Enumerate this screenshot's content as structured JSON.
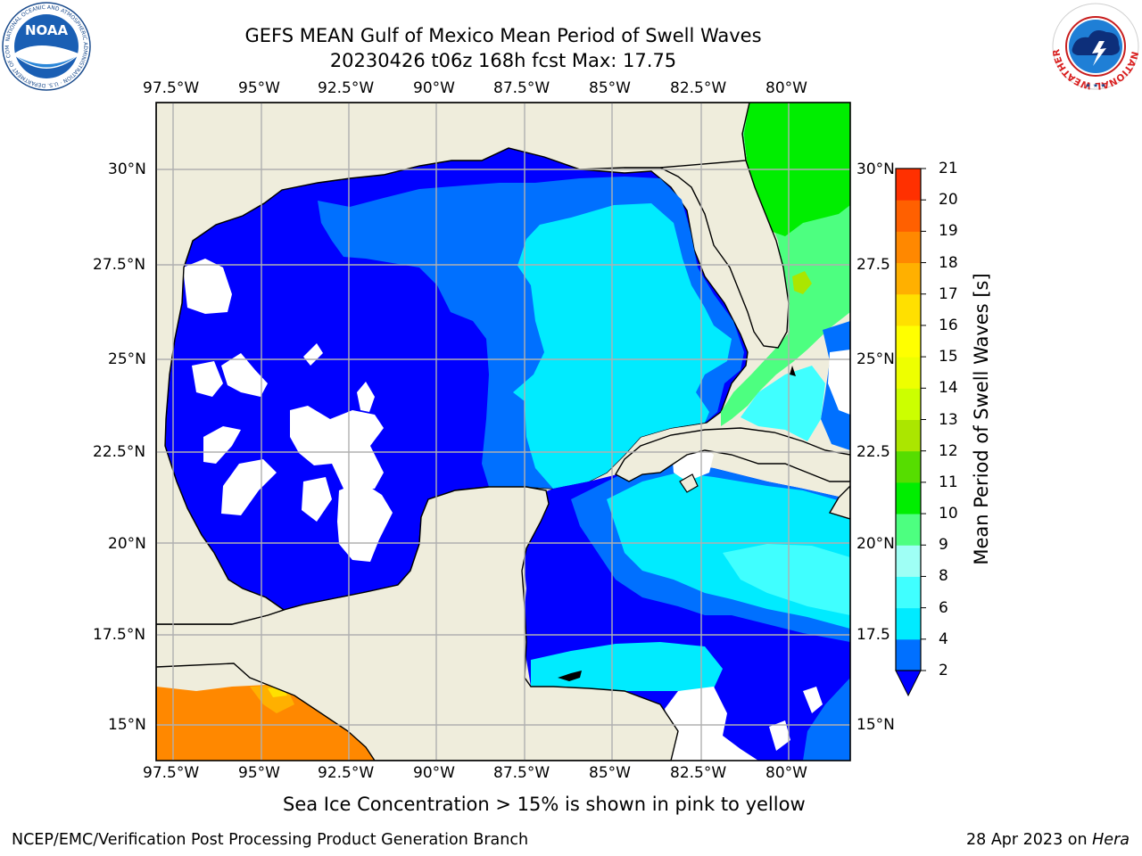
{
  "title": {
    "line1": "GEFS MEAN Gulf of Mexico Mean Period of Swell Waves",
    "line2": "20230426 t06z 168h fcst   Max: 17.75"
  },
  "map": {
    "lon_labels": [
      "97.5°W",
      "95°W",
      "92.5°W",
      "90°W",
      "87.5°W",
      "85°W",
      "82.5°W",
      "80°W"
    ],
    "lat_labels_left": [
      "30°N",
      "27.5°N",
      "25°N",
      "22.5°N",
      "20°N",
      "17.5°N",
      "15°N"
    ],
    "lat_labels_right": [
      "30°N",
      "27.5",
      "25°N",
      "22.5",
      "20°N",
      "17.5",
      "15°N"
    ],
    "land_color": "#efeddc",
    "grid_color": "#b0b0b0"
  },
  "colorbar": {
    "label": "Mean Period of Swell Waves [s]",
    "ticks": [
      "2",
      "4",
      "6",
      "8",
      "9",
      "10",
      "11",
      "12",
      "13",
      "14",
      "15",
      "16",
      "17",
      "18",
      "19",
      "20",
      "21"
    ],
    "colors": [
      "#0070ff",
      "#00ebff",
      "#40ffff",
      "#9ffff5",
      "#4dff80",
      "#00ee00",
      "#56dd00",
      "#abe600",
      "#ccff00",
      "#eeff00",
      "#ffff00",
      "#ffe000",
      "#ffb000",
      "#ff8800",
      "#ff6000",
      "#ff3000",
      "#ff0000"
    ],
    "under_color": "#0000ff"
  },
  "logos": {
    "noaa_text": "NOAA",
    "noaa_ring": "NATIONAL OCEANIC AND ATMOSPHERIC ADMINISTRATION · U.S. DEPARTMENT OF COMMERCE",
    "nws_ring": "NATIONAL WEATHER SERVICE"
  },
  "caption": "Sea Ice Concentration > 15% is shown in pink to yellow",
  "footer": {
    "left": "NCEP/EMC/Verification Post Processing Product Generation Branch",
    "right_prefix": "28 Apr 2023 on ",
    "right_host": "Hera"
  }
}
